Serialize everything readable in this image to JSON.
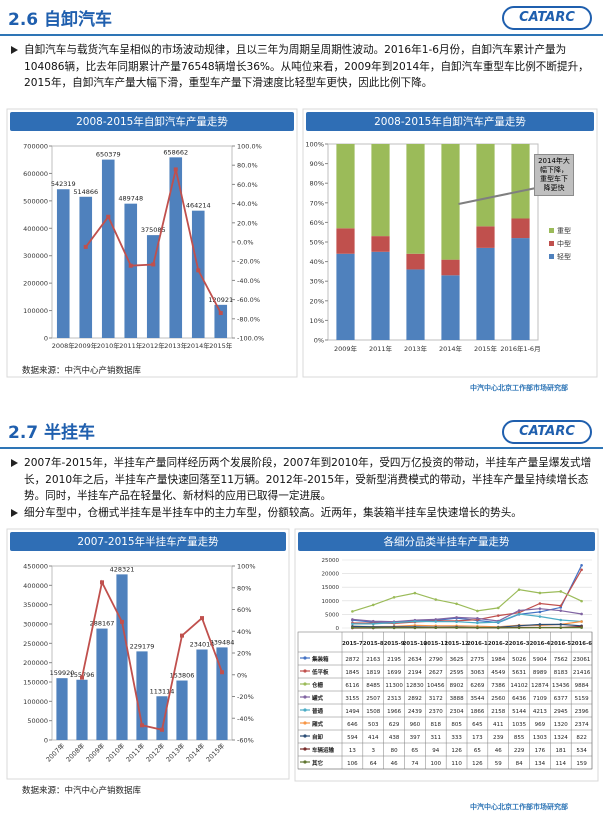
{
  "sections": [
    {
      "title": "2.6 自卸汽车",
      "logo": "CATARC",
      "paragraphs": [
        "自卸汽车与载货汽车呈相似的市场波动规律，且以三年为周期呈周期性波动。2016年1-6月份，自卸汽车累计产量为104086辆，比去年同期累计产量76548辆增长36%。从吨位来看，2009年到2014年，自卸汽车重型车比例不断提升，2015年，自卸汽车产量大幅下滑，重型车产量下滑速度比轻型车更快，因此比例下降。"
      ],
      "charts": [
        {
          "type": "combo",
          "title": "2008-2015年自卸汽车产量走势",
          "categories": [
            "2008年",
            "2009年",
            "2010年",
            "2011年",
            "2012年",
            "2013年",
            "2014年",
            "2015年"
          ],
          "values": [
            542319,
            514866,
            650379,
            489748,
            375085,
            658662,
            464214,
            120921
          ],
          "color": "#4f81bd",
          "line": {
            "values": [
              null,
              -5.1,
              26.3,
              -24.7,
              -23.4,
              75.6,
              -29.5,
              -74.0
            ],
            "color": "#c0504d",
            "axis": "y2"
          },
          "ylim": [
            0,
            700000
          ],
          "yticks": [
            0,
            100000,
            200000,
            300000,
            400000,
            500000,
            600000,
            700000
          ],
          "y2lim": [
            -100,
            100
          ],
          "y2ticks": [
            {
              "value": -100,
              "label": "-100.0%"
            },
            {
              "value": -80,
              "label": "-80.0%"
            },
            {
              "value": -60,
              "label": "-60.0%"
            },
            {
              "value": -40,
              "label": "-40.0%"
            },
            {
              "value": -20,
              "label": "-20.0%"
            },
            {
              "value": 0,
              "label": "0.0%"
            },
            {
              "value": 20,
              "label": "20.0%"
            },
            {
              "value": 40,
              "label": "40.0%"
            },
            {
              "value": 60,
              "label": "60.0%"
            },
            {
              "value": 80,
              "label": "80.0%"
            },
            {
              "value": 100,
              "label": "100.0%"
            }
          ]
        },
        {
          "type": "stacked-bar",
          "title": "2008-2015年自卸汽车产量走势",
          "categories": [
            "2009年",
            "2011年",
            "2013年",
            "2014年",
            "2015年",
            "2016年1-6月"
          ],
          "series": [
            {
              "name": "轻型",
              "color": "#4f81bd",
              "values": [
                44,
                45,
                36,
                33,
                47,
                52
              ]
            },
            {
              "name": "中型",
              "color": "#c0504d",
              "values": [
                13,
                8,
                8,
                8,
                11,
                10
              ]
            },
            {
              "name": "重型",
              "color": "#9bbb59",
              "values": [
                43,
                47,
                56,
                59,
                42,
                38
              ]
            }
          ],
          "ylim": [
            0,
            100
          ],
          "yticks": [
            {
              "value": 0,
              "label": "0%"
            },
            {
              "value": 10,
              "label": "10%"
            },
            {
              "value": 20,
              "label": "20%"
            },
            {
              "value": 30,
              "label": "30%"
            },
            {
              "value": 40,
              "label": "40%"
            },
            {
              "value": 50,
              "label": "50%"
            },
            {
              "value": 60,
              "label": "60%"
            },
            {
              "value": 70,
              "label": "70%"
            },
            {
              "value": 80,
              "label": "80%"
            },
            {
              "value": 90,
              "label": "90%"
            },
            {
              "value": 100,
              "label": "100%"
            }
          ],
          "annotation": "2014年大幅下降，重型车下降更快"
        }
      ],
      "source": "数据来源：中汽中心产销数据库",
      "footer": "中汽中心北京工作部市场研究部"
    },
    {
      "title": "2.7 半挂车",
      "logo": "CATARC",
      "paragraphs": [
        "2007年-2015年，半挂车产量同样经历两个发展阶段，2007年到2010年，受四万亿投资的带动，半挂车产量呈爆发式增长，2010年之后，半挂车产量快速回落至11万辆。2012年-2015年，受新型消费模式的带动，半挂车产量呈持续增长态势。同时，半挂车产品在轻量化、新材料的应用已取得一定进展。",
        "细分车型中，仓栅式半挂车是半挂车中的主力车型，份额较高。近两年，集装箱半挂车呈快速增长的势头。"
      ],
      "charts": [
        {
          "type": "combo",
          "title": "2007-2015年半挂车产量走势",
          "categories": [
            "2007年",
            "2008年",
            "2009年",
            "2010年",
            "2011年",
            "2012年",
            "2013年",
            "2014年",
            "2015年"
          ],
          "values": [
            159920,
            155796,
            288167,
            428321,
            229179,
            113114,
            153806,
            234014,
            239484
          ],
          "color": "#4f81bd",
          "line": {
            "values": [
              null,
              -2.6,
              85.0,
              48.6,
              -46.5,
              -50.6,
              36.0,
              52.1,
              2.3
            ],
            "color": "#c0504d",
            "axis": "y2"
          },
          "ylim": [
            0,
            450000
          ],
          "yticks": [
            0,
            50000,
            100000,
            150000,
            200000,
            250000,
            300000,
            350000,
            400000,
            450000
          ],
          "y2lim": [
            -60,
            100
          ],
          "y2ticks": [
            {
              "value": -60,
              "label": "-60%"
            },
            {
              "value": -40,
              "label": "-40%"
            },
            {
              "value": -20,
              "label": "-20%"
            },
            {
              "value": 0,
              "label": "0%"
            },
            {
              "value": 20,
              "label": "20%"
            },
            {
              "value": 40,
              "label": "40%"
            },
            {
              "value": 60,
              "label": "60%"
            },
            {
              "value": 80,
              "label": "80%"
            },
            {
              "value": 100,
              "label": "100%"
            }
          ],
          "rotate_labels": true
        },
        {
          "type": "line-table",
          "title": "各细分品类半挂车产量走势",
          "categories": [
            "2015-7",
            "2015-8",
            "2015-9",
            "2015-10",
            "2015-11",
            "2015-12",
            "2016-1",
            "2016-2",
            "2016-3",
            "2016-4",
            "2016-5",
            "2016-6"
          ],
          "series": [
            {
              "name": "集装箱",
              "color": "#4472c4",
              "values": [
                2872,
                2163,
                2195,
                2634,
                2790,
                3625,
                2775,
                1984,
                5026,
                5904,
                7562,
                23061
              ]
            },
            {
              "name": "低平板",
              "color": "#c0504d",
              "values": [
                1845,
                1819,
                1699,
                2194,
                2627,
                2595,
                3063,
                4549,
                5631,
                8989,
                8183,
                21416
              ]
            },
            {
              "name": "仓栅",
              "color": "#9bbb59",
              "values": [
                6116,
                8485,
                11300,
                12830,
                10456,
                8902,
                6269,
                7386,
                14102,
                12874,
                13436,
                9884
              ]
            },
            {
              "name": "罐式",
              "color": "#8064a2",
              "values": [
                3155,
                2507,
                2313,
                2892,
                3172,
                3888,
                3544,
                2560,
                6436,
                7109,
                6377,
                5159
              ]
            },
            {
              "name": "普通",
              "color": "#4bacc6",
              "values": [
                1494,
                1508,
                1966,
                2439,
                2370,
                2304,
                1866,
                2158,
                5144,
                4213,
                2945,
                2396
              ]
            },
            {
              "name": "厢式",
              "color": "#f79646",
              "values": [
                646,
                503,
                629,
                960,
                818,
                805,
                645,
                411,
                1035,
                969,
                1320,
                2374
              ]
            },
            {
              "name": "自卸",
              "color": "#2c4d75",
              "values": [
                594,
                414,
                438,
                397,
                311,
                333,
                173,
                239,
                855,
                1303,
                1324,
                822
              ]
            },
            {
              "name": "车辆运输",
              "color": "#772c2a",
              "values": [
                13,
                3,
                80,
                65,
                94,
                126,
                65,
                46,
                229,
                176,
                181,
                534
              ]
            },
            {
              "name": "其它",
              "color": "#5f7530",
              "values": [
                106,
                64,
                46,
                74,
                100,
                110,
                126,
                59,
                84,
                134,
                114,
                159
              ]
            }
          ],
          "ylim": [
            0,
            25000
          ],
          "yticks": [
            0,
            5000,
            10000,
            15000,
            20000,
            25000
          ]
        }
      ],
      "source": "数据来源：中汽中心产销数据库",
      "footer": "中汽中心北京工作部市场研究部"
    }
  ]
}
